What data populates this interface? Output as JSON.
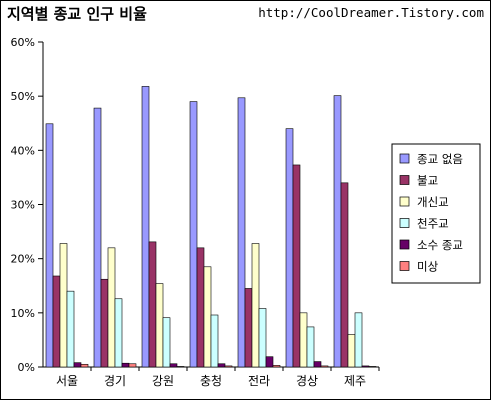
{
  "header": {
    "title": "지역별 종교 인구 비율",
    "url": "http://CoolDreamer.Tistory.com"
  },
  "chart_data": {
    "type": "bar",
    "title": "지역별 종교 인구 비율",
    "xlabel": "",
    "ylabel": "",
    "categories": [
      "서울",
      "경기",
      "강원",
      "충청",
      "전라",
      "경상",
      "제주"
    ],
    "ylim": [
      0,
      60
    ],
    "ytick_step": 10,
    "ytick_format": "percent",
    "grid": false,
    "legend_position": "right",
    "series": [
      {
        "name": "종교 없음",
        "color": "#9999ff",
        "values": [
          44.9,
          47.8,
          51.8,
          49.0,
          49.7,
          44.0,
          50.1
        ]
      },
      {
        "name": "불교",
        "color": "#993366",
        "values": [
          16.8,
          16.2,
          23.1,
          22.0,
          14.5,
          37.3,
          34.0
        ]
      },
      {
        "name": "개신교",
        "color": "#ffffcc",
        "values": [
          22.8,
          22.0,
          15.4,
          18.5,
          22.8,
          10.0,
          6.0
        ]
      },
      {
        "name": "천주교",
        "color": "#ccffff",
        "values": [
          14.0,
          12.6,
          9.1,
          9.6,
          10.8,
          7.4,
          10.0
        ]
      },
      {
        "name": "소수 종교",
        "color": "#660066",
        "values": [
          0.8,
          0.7,
          0.6,
          0.6,
          1.9,
          1.0,
          0.2
        ]
      },
      {
        "name": "미상",
        "color": "#ff8080",
        "values": [
          0.5,
          0.6,
          0.1,
          0.2,
          0.3,
          0.2,
          0.1
        ]
      }
    ]
  }
}
